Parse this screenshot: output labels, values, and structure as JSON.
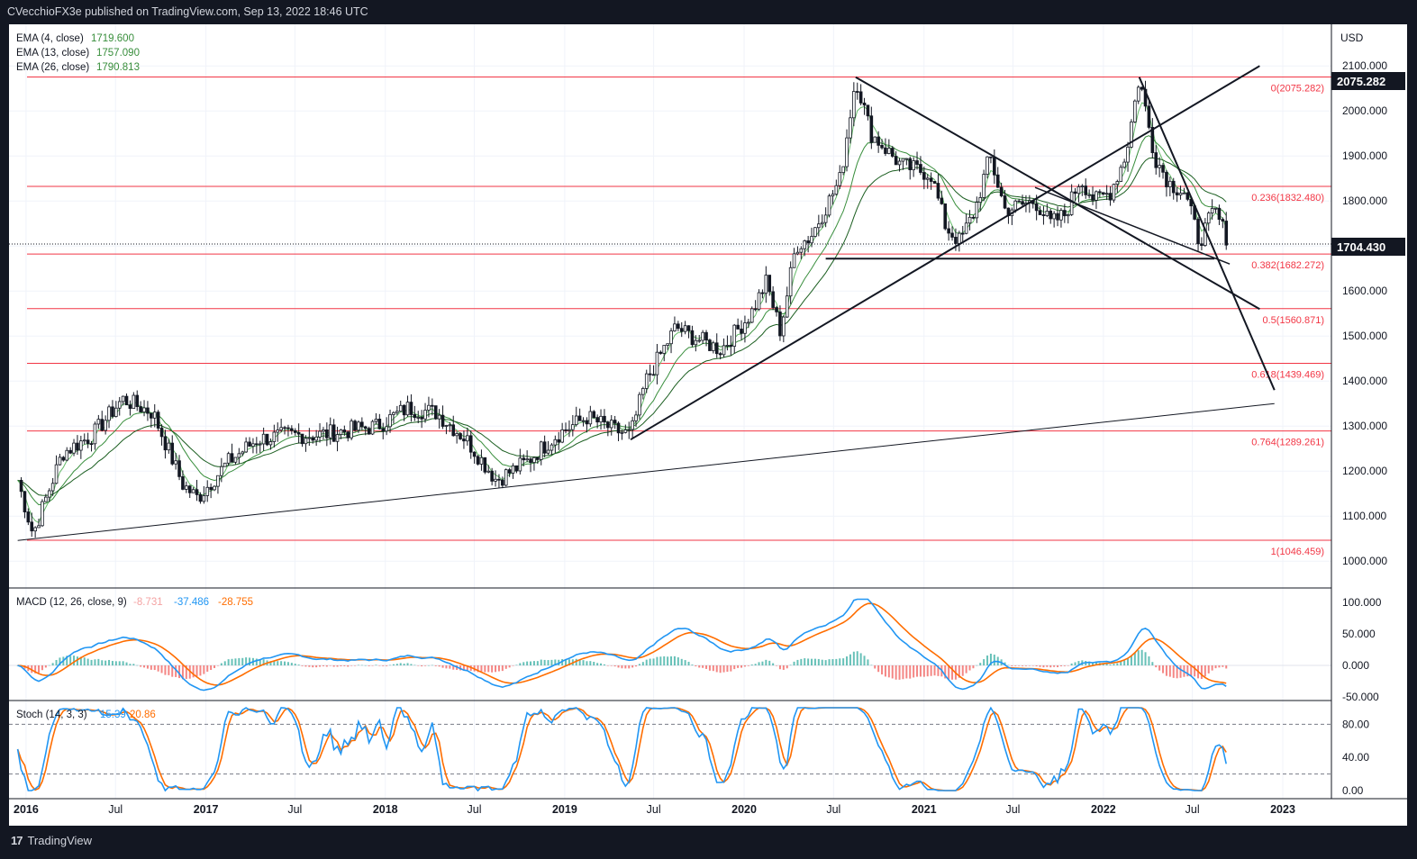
{
  "header": {
    "published": "CVecchioFX3e published on TradingView.com, Sep 13, 2022 18:46 UTC"
  },
  "footer": {
    "brand": "TradingView",
    "logo_glyph": "17"
  },
  "price_panel": {
    "currency": "USD",
    "ticks": [
      "2100.000",
      "2000.000",
      "1900.000",
      "1800.000",
      "1700.000",
      "1600.000",
      "1500.000",
      "1400.000",
      "1300.000",
      "1200.000",
      "1100.000",
      "1000.000"
    ],
    "legend": [
      {
        "label": "EMA (4, close)",
        "value": "1719.600",
        "color": "#388e3c"
      },
      {
        "label": "EMA (13, close)",
        "value": "1757.090",
        "color": "#388e3c"
      },
      {
        "label": "EMA (26, close)",
        "value": "1790.813",
        "color": "#388e3c"
      }
    ],
    "badges": [
      "2075.282",
      "1704.430"
    ],
    "fib_labels": [
      "0(2075.282)",
      "0.236(1832.480)",
      "0.382(1682.272)",
      "0.5(1560.871)",
      "0.618(1439.469)",
      "0.764(1289.261)",
      "1(1046.459)"
    ]
  },
  "macd_panel": {
    "label": "MACD (12, 26, close, 9)",
    "values": [
      "-8.731",
      "-37.486",
      "-28.755"
    ],
    "ticks": [
      "100.000",
      "50.000",
      "0.000",
      "-50.000"
    ]
  },
  "stoch_panel": {
    "label": "Stoch (14, 3, 3)",
    "values": [
      "15.39",
      "20.86"
    ],
    "ticks": [
      "80.00",
      "40.00",
      "0.00"
    ]
  },
  "x_axis": {
    "labels": [
      "2016",
      "Jul",
      "2017",
      "Jul",
      "2018",
      "Jul",
      "2019",
      "Jul",
      "2020",
      "Jul",
      "2021",
      "Jul",
      "2022",
      "Jul",
      "2023"
    ]
  },
  "colors": {
    "macd": "#2196f3",
    "signal": "#ff6d00",
    "fib": "#f23645",
    "ema": "#388e3c",
    "hist_pos": "#26a69a",
    "hist_neg": "#ef5350"
  },
  "chart_data": {
    "type": "line",
    "x": [
      "2015-12",
      "2016-01",
      "2016-03",
      "2016-05",
      "2016-07",
      "2016-09",
      "2016-11",
      "2016-12",
      "2017-02",
      "2017-04",
      "2017-06",
      "2017-08",
      "2017-10",
      "2017-12",
      "2018-02",
      "2018-04",
      "2018-06",
      "2018-08",
      "2018-10",
      "2018-12",
      "2019-02",
      "2019-04",
      "2019-05",
      "2019-06",
      "2019-08",
      "2019-09",
      "2019-11",
      "2020-01",
      "2020-02",
      "2020-03",
      "2020-04",
      "2020-05",
      "2020-07",
      "2020-08",
      "2020-09",
      "2020-11",
      "2021-01",
      "2021-02",
      "2021-03",
      "2021-04",
      "2021-05",
      "2021-06",
      "2021-08",
      "2021-09",
      "2021-10",
      "2021-11",
      "2021-12",
      "2022-01",
      "2022-02",
      "2022-03",
      "2022-04",
      "2022-05",
      "2022-06",
      "2022-07",
      "2022-08",
      "2022-09"
    ],
    "series": [
      {
        "values": [
          1180,
          1060,
          1240,
          1280,
          1360,
          1330,
          1170,
          1140,
          1220,
          1270,
          1280,
          1280,
          1290,
          1300,
          1340,
          1330,
          1270,
          1180,
          1220,
          1280,
          1320,
          1290,
          1280,
          1400,
          1520,
          1500,
          1470,
          1550,
          1620,
          1510,
          1700,
          1720,
          1850,
          2075,
          1950,
          1880,
          1860,
          1740,
          1710,
          1780,
          1900,
          1780,
          1800,
          1750,
          1770,
          1850,
          1800,
          1820,
          1900,
          2075,
          1900,
          1840,
          1820,
          1710,
          1780,
          1704
        ]
      }
    ],
    "ylim": [
      950,
      2150
    ],
    "ema": {
      "4": 1719.6,
      "13": 1757.09,
      "26": 1790.813
    },
    "fibonacci": [
      {
        "level": 0,
        "price": 2075.282
      },
      {
        "level": 0.236,
        "price": 1832.48
      },
      {
        "level": 0.382,
        "price": 1682.272
      },
      {
        "level": 0.5,
        "price": 1560.871
      },
      {
        "level": 0.618,
        "price": 1439.469
      },
      {
        "level": 0.764,
        "price": 1289.261
      },
      {
        "level": 1,
        "price": 1046.459
      }
    ],
    "last_price": 1704.43,
    "macd": {
      "histogram": -8.731,
      "macd": -37.486,
      "signal": -28.755,
      "ylim": [
        -50,
        100
      ]
    },
    "stoch": {
      "k": 15.39,
      "d": 20.86,
      "levels": [
        80,
        20
      ],
      "ylim": [
        0,
        100
      ]
    }
  }
}
